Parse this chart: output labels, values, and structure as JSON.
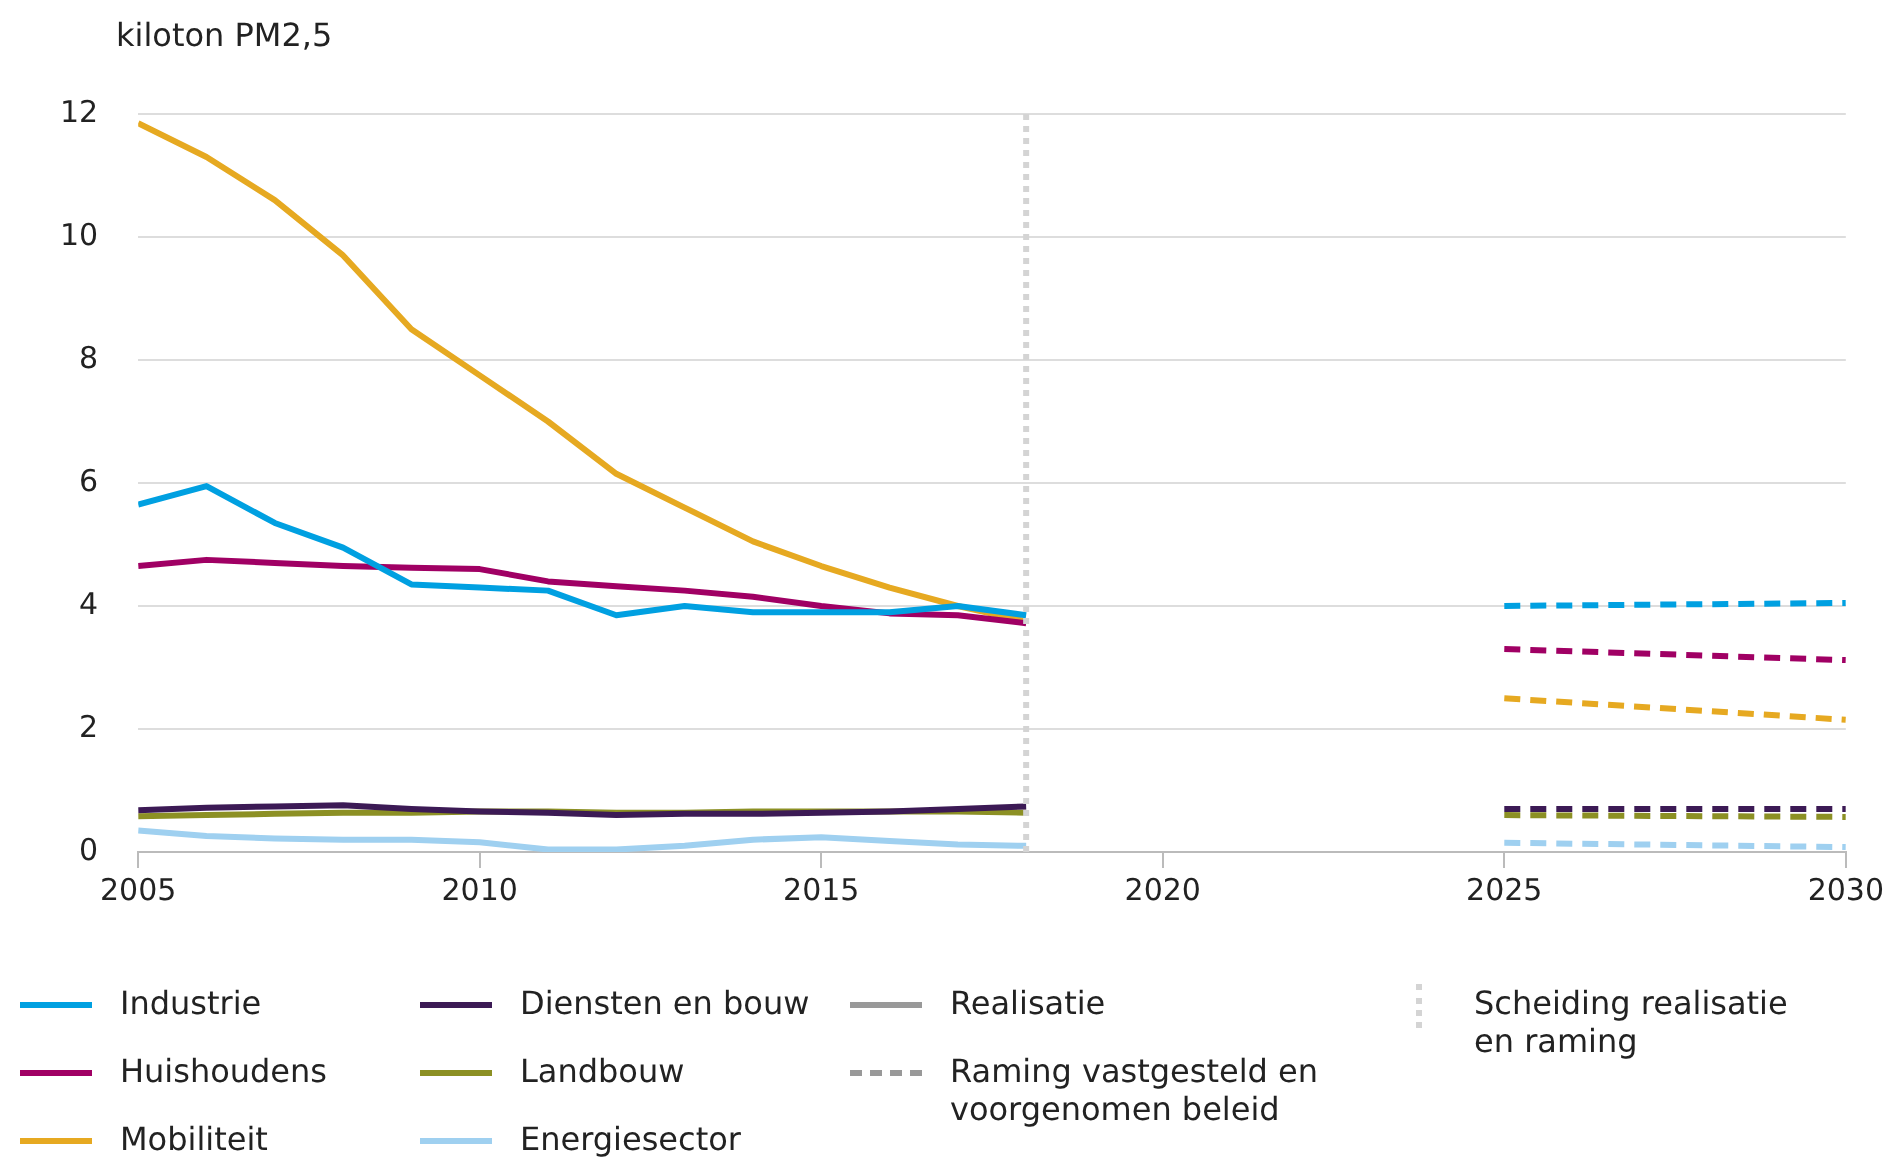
{
  "chart_data": {
    "type": "line",
    "ylabel": "kiloton PM2,5",
    "xlim": [
      2005,
      2030
    ],
    "xticks": [
      2005,
      2010,
      2015,
      2020,
      2025,
      2030
    ],
    "ylim": [
      0,
      12
    ],
    "yticks": [
      0,
      2,
      4,
      6,
      8,
      10,
      12
    ],
    "grid": "y",
    "legend": "bottom",
    "marker": "none",
    "series": [
      {
        "name": "Industrie",
        "color": "#00a0e1",
        "line_style": "solid",
        "x": [
          2005,
          2006,
          2007,
          2008,
          2009,
          2010,
          2011,
          2012,
          2013,
          2014,
          2015,
          2016,
          2017,
          2018
        ],
        "values": [
          5.65,
          5.95,
          5.35,
          4.95,
          4.35,
          4.3,
          4.25,
          3.85,
          4.0,
          3.9,
          3.9,
          3.9,
          4.0,
          3.85
        ]
      },
      {
        "name": "Huishoudens",
        "color": "#a00064",
        "line_style": "solid",
        "x": [
          2005,
          2006,
          2007,
          2008,
          2009,
          2010,
          2011,
          2012,
          2013,
          2014,
          2015,
          2016,
          2017,
          2018
        ],
        "values": [
          4.65,
          4.75,
          4.7,
          4.65,
          4.62,
          4.6,
          4.4,
          4.32,
          4.25,
          4.15,
          4.0,
          3.88,
          3.85,
          3.72
        ]
      },
      {
        "name": "Mobiliteit",
        "color": "#e6a921",
        "line_style": "solid",
        "x": [
          2005,
          2006,
          2007,
          2008,
          2009,
          2010,
          2011,
          2012,
          2013,
          2014,
          2015,
          2016,
          2017,
          2018
        ],
        "values": [
          11.85,
          11.3,
          10.6,
          9.7,
          8.5,
          7.75,
          7.0,
          6.15,
          5.6,
          5.05,
          4.65,
          4.3,
          4.0,
          3.75
        ]
      },
      {
        "name": "Diensten en bouw",
        "color": "#3c1a55",
        "line_style": "solid",
        "x": [
          2005,
          2006,
          2007,
          2008,
          2009,
          2010,
          2011,
          2012,
          2013,
          2014,
          2015,
          2016,
          2017,
          2018
        ],
        "values": [
          0.68,
          0.72,
          0.74,
          0.76,
          0.7,
          0.66,
          0.64,
          0.6,
          0.62,
          0.62,
          0.64,
          0.66,
          0.7,
          0.74
        ]
      },
      {
        "name": "Landbouw",
        "color": "#8c9024",
        "line_style": "solid",
        "x": [
          2005,
          2006,
          2007,
          2008,
          2009,
          2010,
          2011,
          2012,
          2013,
          2014,
          2015,
          2016,
          2017,
          2018
        ],
        "values": [
          0.58,
          0.6,
          0.62,
          0.64,
          0.64,
          0.66,
          0.66,
          0.64,
          0.64,
          0.66,
          0.66,
          0.66,
          0.66,
          0.64
        ]
      },
      {
        "name": "Energiesector",
        "color": "#9fd0f0",
        "line_style": "solid",
        "x": [
          2005,
          2006,
          2007,
          2008,
          2009,
          2010,
          2011,
          2012,
          2013,
          2014,
          2015,
          2016,
          2017,
          2018
        ],
        "values": [
          0.35,
          0.26,
          0.22,
          0.2,
          0.2,
          0.16,
          0.04,
          0.04,
          0.1,
          0.2,
          0.24,
          0.18,
          0.12,
          0.1
        ]
      },
      {
        "color": "#00a0e1",
        "line_style": "dashed",
        "x": [
          2025,
          2030
        ],
        "values": [
          4.0,
          4.05
        ]
      },
      {
        "color": "#a00064",
        "line_style": "dashed",
        "x": [
          2025,
          2030
        ],
        "values": [
          3.3,
          3.12
        ]
      },
      {
        "color": "#e6a921",
        "line_style": "dashed",
        "x": [
          2025,
          2030
        ],
        "values": [
          2.5,
          2.15
        ]
      },
      {
        "color": "#3c1a55",
        "line_style": "dashed",
        "x": [
          2025,
          2030
        ],
        "values": [
          0.7,
          0.7
        ]
      },
      {
        "color": "#8c9024",
        "line_style": "dashed",
        "x": [
          2025,
          2030
        ],
        "values": [
          0.6,
          0.57
        ]
      },
      {
        "color": "#9fd0f0",
        "line_style": "dashed",
        "x": [
          2025,
          2030
        ],
        "values": [
          0.15,
          0.08
        ]
      }
    ],
    "ref_lines": [
      {
        "axis": "x",
        "value": 2018,
        "label": "Scheiding realisatie en raming",
        "color": "#d4d4d4",
        "line_style": "dotted"
      }
    ],
    "annotations": [
      "Realisatie",
      "Raming vastgesteld en voorgenomen beleid"
    ]
  }
}
